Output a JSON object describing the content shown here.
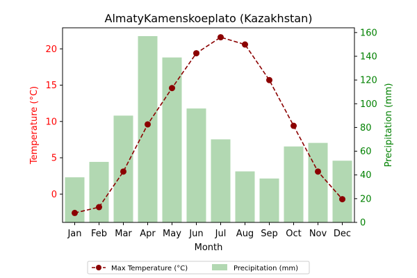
{
  "chart_data": {
    "type": "bar+line",
    "title": "AlmatyKamenskoeplato (Kazakhstan)",
    "xlabel": "Month",
    "ylabel_left": "Temperature (°C)",
    "ylabel_right": "Precipitation (mm)",
    "categories": [
      "Jan",
      "Feb",
      "Mar",
      "Apr",
      "May",
      "Jun",
      "Jul",
      "Aug",
      "Sep",
      "Oct",
      "Nov",
      "Dec"
    ],
    "series": [
      {
        "name": "Max Temperature (°C)",
        "kind": "line",
        "axis": "left",
        "color": "#8b0000",
        "values": [
          -2.6,
          -1.8,
          3.1,
          9.6,
          14.6,
          19.4,
          21.6,
          20.6,
          15.7,
          9.4,
          3.1,
          -0.7
        ]
      },
      {
        "name": "Precipitation (mm)",
        "kind": "bar",
        "axis": "right",
        "color": "#b2d8b2",
        "values": [
          38,
          51,
          90,
          157,
          139,
          96,
          70,
          43,
          37,
          64,
          67,
          52
        ]
      }
    ],
    "ylim_left": [
      -3.9,
      22.9
    ],
    "ylim_right": [
      0,
      164
    ],
    "yticks_left": [
      "0",
      "5",
      "10",
      "15",
      "20"
    ],
    "yticks_right": [
      "0",
      "20",
      "40",
      "60",
      "80",
      "100",
      "120",
      "140",
      "160"
    ],
    "grid": false,
    "legend_placement": "bottom-center"
  },
  "colors": {
    "left_axis": "#ff0000",
    "right_axis": "#008000",
    "line": "#8b0000",
    "bars": "#b2d8b2"
  }
}
